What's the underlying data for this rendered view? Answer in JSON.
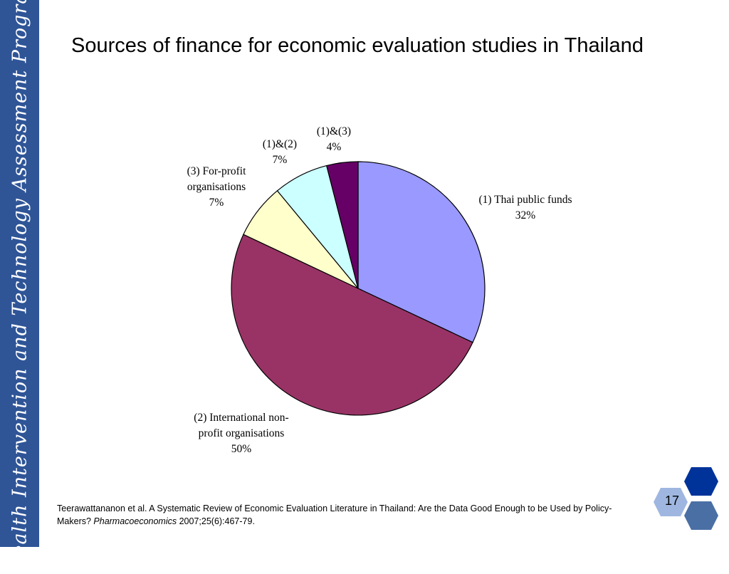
{
  "sidebar": {
    "text": "Health Intervention and Technology Assessment Program"
  },
  "title": "Sources of finance for economic evaluation studies in Thailand",
  "chart_data": {
    "type": "pie",
    "title": "",
    "slices": [
      {
        "lines": [
          "(1) Thai public funds",
          "32%"
        ],
        "value": 32,
        "color": "#9999ff"
      },
      {
        "lines": [
          "(2) International non-",
          "profit organisations",
          "50%"
        ],
        "value": 50,
        "color": "#993366"
      },
      {
        "lines": [
          "(3) For-profit",
          "organisations",
          "7%"
        ],
        "value": 7,
        "color": "#ffffcc"
      },
      {
        "lines": [
          "(1)&(2)",
          "7%"
        ],
        "value": 7,
        "color": "#ccffff"
      },
      {
        "lines": [
          "(1)&(3)",
          "4%"
        ],
        "value": 4,
        "color": "#660066"
      }
    ]
  },
  "citation": {
    "text_pre": "Teerawattananon et al. A Systematic Review of Economic Evaluation Literature in Thailand: Are the Data Good Enough to be Used by Policy-Makers? ",
    "journal": "Pharmacoeconomics",
    "text_post": " 2007;25(6):467-79."
  },
  "page_number": "17",
  "colors": {
    "sidebar": "#2f5597",
    "hex_dark": "#003399",
    "hex_mid": "#4a6fa5",
    "hex_light": "#9fb7e0"
  }
}
